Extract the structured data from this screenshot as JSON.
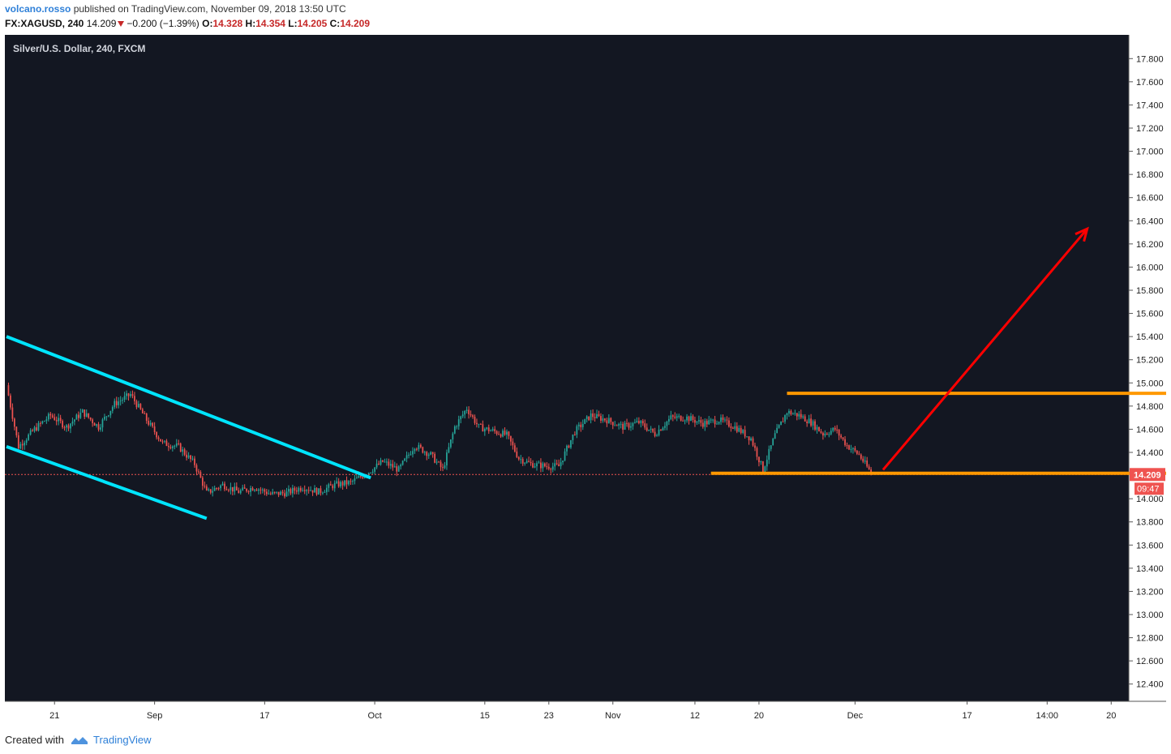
{
  "header": {
    "author": "volcano.rosso",
    "published_text": "published on TradingView.com, November 09, 2018 13:50 UTC"
  },
  "quote": {
    "symbol": "FX:XAGUSD, 240",
    "last": "14.209",
    "change": "−0.200 (−1.39%)",
    "o_label": "O:",
    "o_value": "14.328",
    "h_label": "H:",
    "h_value": "14.354",
    "l_label": "L:",
    "l_value": "14.205",
    "c_label": "C:",
    "c_value": "14.209"
  },
  "footer": {
    "created_with": "Created with",
    "brand": "TradingView"
  },
  "colors": {
    "background": "#131722",
    "bull": "#26a69a",
    "bear": "#ef5350",
    "channel": "#00e5ff",
    "range": "#ff9800",
    "arrow": "#ff0000"
  },
  "chart_data": {
    "type": "candlestick",
    "title": "Silver/U.S. Dollar, 240, FXCM",
    "x_ticks": [
      "21",
      "Sep",
      "17",
      "Oct",
      "15",
      "23",
      "Nov",
      "12",
      "20",
      "Dec",
      "17",
      "14:00",
      "20"
    ],
    "y_ticks": [
      "17.800",
      "17.600",
      "17.400",
      "17.200",
      "17.000",
      "16.800",
      "16.600",
      "16.400",
      "16.200",
      "16.000",
      "15.800",
      "15.600",
      "15.400",
      "15.200",
      "15.000",
      "14.800",
      "14.600",
      "14.400",
      "14.000",
      "13.800",
      "13.600",
      "13.400",
      "13.200",
      "13.000",
      "12.800",
      "12.600",
      "12.400"
    ],
    "ylim": [
      12.3,
      17.9
    ],
    "last_price": "14.209",
    "countdown": "09:47",
    "close_path": [
      [
        0,
        14.98
      ],
      [
        6,
        14.45
      ],
      [
        14,
        14.6
      ],
      [
        22,
        14.72
      ],
      [
        30,
        14.62
      ],
      [
        38,
        14.75
      ],
      [
        46,
        14.62
      ],
      [
        54,
        14.82
      ],
      [
        62,
        14.9
      ],
      [
        70,
        14.68
      ],
      [
        78,
        14.48
      ],
      [
        86,
        14.45
      ],
      [
        94,
        14.3
      ],
      [
        100,
        14.05
      ],
      [
        108,
        14.12
      ],
      [
        116,
        14.06
      ],
      [
        124,
        14.1
      ],
      [
        132,
        14.04
      ],
      [
        140,
        14.05
      ],
      [
        148,
        14.1
      ],
      [
        156,
        14.06
      ],
      [
        164,
        14.12
      ],
      [
        172,
        14.14
      ],
      [
        180,
        14.22
      ],
      [
        188,
        14.32
      ],
      [
        196,
        14.25
      ],
      [
        204,
        14.46
      ],
      [
        212,
        14.38
      ],
      [
        218,
        14.25
      ],
      [
        224,
        14.62
      ],
      [
        230,
        14.78
      ],
      [
        236,
        14.62
      ],
      [
        244,
        14.58
      ],
      [
        250,
        14.55
      ],
      [
        256,
        14.35
      ],
      [
        262,
        14.3
      ],
      [
        270,
        14.28
      ],
      [
        276,
        14.28
      ],
      [
        284,
        14.58
      ],
      [
        292,
        14.72
      ],
      [
        300,
        14.68
      ],
      [
        308,
        14.62
      ],
      [
        316,
        14.66
      ],
      [
        324,
        14.56
      ],
      [
        332,
        14.7
      ],
      [
        340,
        14.7
      ],
      [
        348,
        14.65
      ],
      [
        356,
        14.68
      ],
      [
        364,
        14.62
      ],
      [
        372,
        14.52
      ],
      [
        378,
        14.25
      ],
      [
        384,
        14.55
      ],
      [
        390,
        14.75
      ],
      [
        396,
        14.72
      ],
      [
        402,
        14.66
      ],
      [
        408,
        14.56
      ],
      [
        414,
        14.6
      ],
      [
        420,
        14.46
      ],
      [
        426,
        14.38
      ],
      [
        432,
        14.22
      ]
    ],
    "drawings": [
      {
        "type": "channel-line",
        "name": "upper descending channel",
        "from": [
          0,
          15.4
        ],
        "to": [
          182,
          14.18
        ]
      },
      {
        "type": "channel-line",
        "name": "lower descending channel",
        "from": [
          0,
          14.45
        ],
        "to": [
          100,
          13.83
        ]
      },
      {
        "type": "horizontal-line",
        "name": "range resistance",
        "y": 14.91
      },
      {
        "type": "horizontal-line",
        "name": "range support",
        "y": 14.22
      },
      {
        "type": "arrow",
        "name": "projection",
        "from": [
          438,
          14.25
        ],
        "to": [
          540,
          16.33
        ]
      }
    ]
  }
}
